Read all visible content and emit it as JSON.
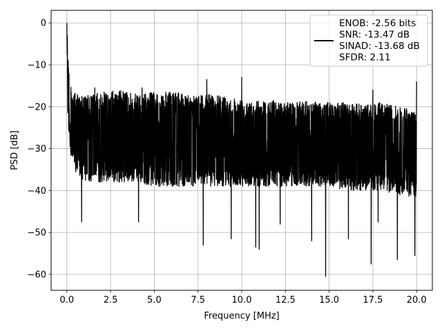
{
  "chart_data": {
    "type": "line",
    "title": "",
    "xlabel": "Frequency [MHz]",
    "ylabel": "PSD [dB]",
    "xlim": [
      -0.9,
      20.9
    ],
    "ylim": [
      -63.8,
      3.0
    ],
    "x_ticks": [
      0.0,
      2.5,
      5.0,
      7.5,
      10.0,
      12.5,
      15.0,
      17.5,
      20.0
    ],
    "x_tick_labels": [
      "0.0",
      "2.5",
      "5.0",
      "7.5",
      "10.0",
      "12.5",
      "15.0",
      "17.5",
      "20.0"
    ],
    "y_ticks": [
      0,
      -10,
      -20,
      -30,
      -40,
      -50,
      -60
    ],
    "y_tick_labels": [
      "0",
      "−10",
      "−20",
      "−30",
      "−40",
      "−50",
      "−60"
    ],
    "grid": true,
    "legend_position": "top-right",
    "series_color": "#000000",
    "legend_lines": [
      "ENOB: -2.56 bits",
      "SNR: -13.47 dB",
      "SINAD: -13.68 dB",
      "SFDR: 2.11"
    ],
    "series": [
      {
        "name": "ENOB: -2.56 bits\nSNR: -13.47 dB\nSINAD: -13.68 dB\nSFDR: 2.11",
        "envelope_x": [
          0.0,
          0.05,
          0.1,
          0.25,
          0.5,
          1.0,
          2.0,
          3.0,
          4.0,
          5.0,
          6.0,
          7.0,
          8.0,
          9.0,
          10.0,
          11.0,
          12.0,
          13.0,
          14.0,
          15.0,
          16.0,
          17.0,
          18.0,
          19.0,
          20.0
        ],
        "envelope_upper": [
          0.0,
          -5.0,
          -10.0,
          -15.5,
          -17.0,
          -17.5,
          -16.5,
          -16.0,
          -17.0,
          -16.5,
          -16.5,
          -17.0,
          -17.0,
          -17.5,
          -18.0,
          -18.5,
          -18.5,
          -19.0,
          -18.5,
          -19.0,
          -19.0,
          -19.5,
          -19.0,
          -20.0,
          -21.0
        ],
        "envelope_lower": [
          -5.0,
          -22.0,
          -27.0,
          -32.0,
          -36.0,
          -38.0,
          -38.0,
          -38.0,
          -38.0,
          -39.0,
          -39.0,
          -39.0,
          -39.0,
          -39.0,
          -39.0,
          -39.0,
          -39.0,
          -39.0,
          -39.0,
          -39.0,
          -40.0,
          -40.0,
          -40.0,
          -41.0,
          -42.0
        ],
        "spikes_up": [
          {
            "x": 0.0,
            "y": 0.0
          },
          {
            "x": 0.02,
            "y": -3.0
          },
          {
            "x": 0.08,
            "y": -9.0
          },
          {
            "x": 8.0,
            "y": -13.5
          },
          {
            "x": 10.0,
            "y": -13.0
          },
          {
            "x": 20.0,
            "y": -14.0
          },
          {
            "x": 1.6,
            "y": -15.5
          },
          {
            "x": 4.3,
            "y": -15.5
          },
          {
            "x": 17.5,
            "y": -16.0
          }
        ],
        "spikes_down": [
          {
            "x": 0.85,
            "y": -47.5
          },
          {
            "x": 7.8,
            "y": -53.0
          },
          {
            "x": 9.4,
            "y": -51.5
          },
          {
            "x": 10.8,
            "y": -53.5
          },
          {
            "x": 11.0,
            "y": -54.0
          },
          {
            "x": 14.0,
            "y": -52.0
          },
          {
            "x": 14.8,
            "y": -60.5
          },
          {
            "x": 16.1,
            "y": -51.5
          },
          {
            "x": 17.4,
            "y": -57.5
          },
          {
            "x": 18.9,
            "y": -56.5
          },
          {
            "x": 19.9,
            "y": -55.5
          },
          {
            "x": 4.1,
            "y": -47.5
          },
          {
            "x": 12.2,
            "y": -48.0
          },
          {
            "x": 17.8,
            "y": -47.5
          }
        ]
      }
    ]
  }
}
